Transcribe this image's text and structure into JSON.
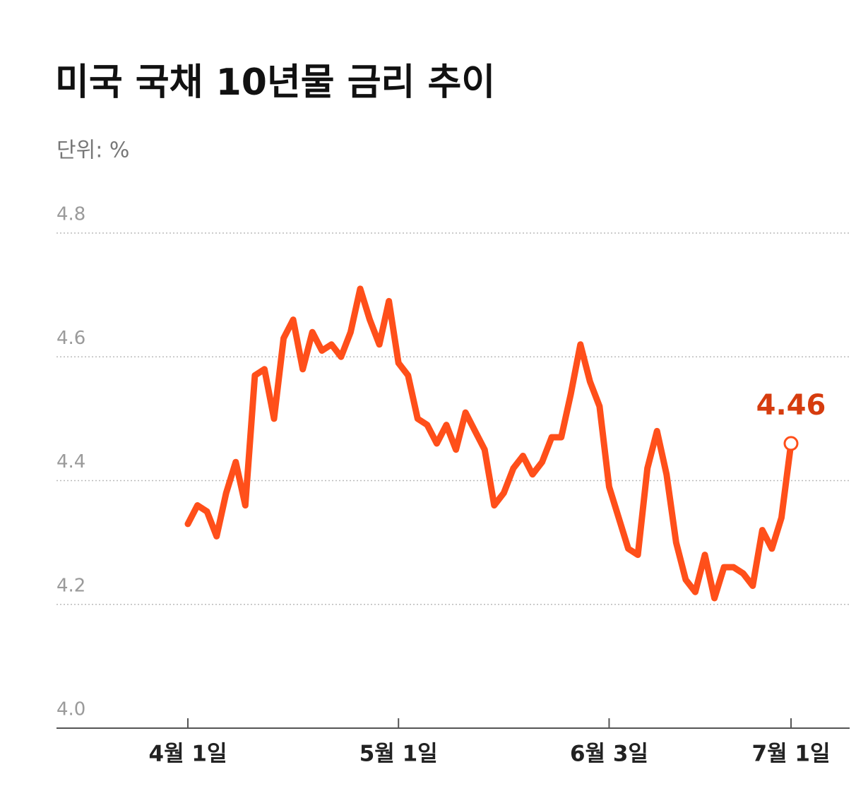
{
  "chart_data": {
    "type": "line",
    "title": "미국 국채 10년물 금리 추이",
    "subtitle": "단위: %",
    "categories": [
      "4월 1일",
      null,
      null,
      null,
      null,
      null,
      null,
      null,
      null,
      null,
      null,
      null,
      null,
      null,
      null,
      null,
      null,
      null,
      null,
      null,
      null,
      null,
      "5월 1일",
      null,
      null,
      null,
      null,
      null,
      null,
      null,
      null,
      null,
      null,
      null,
      null,
      null,
      null,
      null,
      null,
      null,
      null,
      null,
      null,
      null,
      "6월 3일",
      null,
      null,
      null,
      null,
      null,
      null,
      null,
      null,
      null,
      null,
      null,
      null,
      null,
      null,
      null,
      null,
      null,
      null,
      "7월 1일"
    ],
    "series": [
      {
        "color": "#ff4f1a",
        "values": [
          4.33,
          4.36,
          4.35,
          4.31,
          4.38,
          4.43,
          4.36,
          4.57,
          4.58,
          4.5,
          4.63,
          4.66,
          4.58,
          4.64,
          4.61,
          4.62,
          4.6,
          4.64,
          4.71,
          4.66,
          4.62,
          4.69,
          4.59,
          4.57,
          4.5,
          4.49,
          4.46,
          4.49,
          4.45,
          4.51,
          4.48,
          4.45,
          4.36,
          4.38,
          4.42,
          4.44,
          4.41,
          4.43,
          4.47,
          4.47,
          4.54,
          4.62,
          4.56,
          4.52,
          4.39,
          4.34,
          4.29,
          4.28,
          4.42,
          4.48,
          4.41,
          4.3,
          4.24,
          4.22,
          4.28,
          4.21,
          4.26,
          4.26,
          4.25,
          4.23,
          4.32,
          4.29,
          4.34,
          4.46
        ]
      }
    ],
    "label_last_point": true,
    "label_color": "#d63c0e",
    "ylim": [
      4.0,
      4.8
    ],
    "yticks": [
      {
        "value": 4.0,
        "label": "4.0"
      },
      4.2,
      4.4,
      4.6,
      4.8
    ],
    "grid": true
  }
}
